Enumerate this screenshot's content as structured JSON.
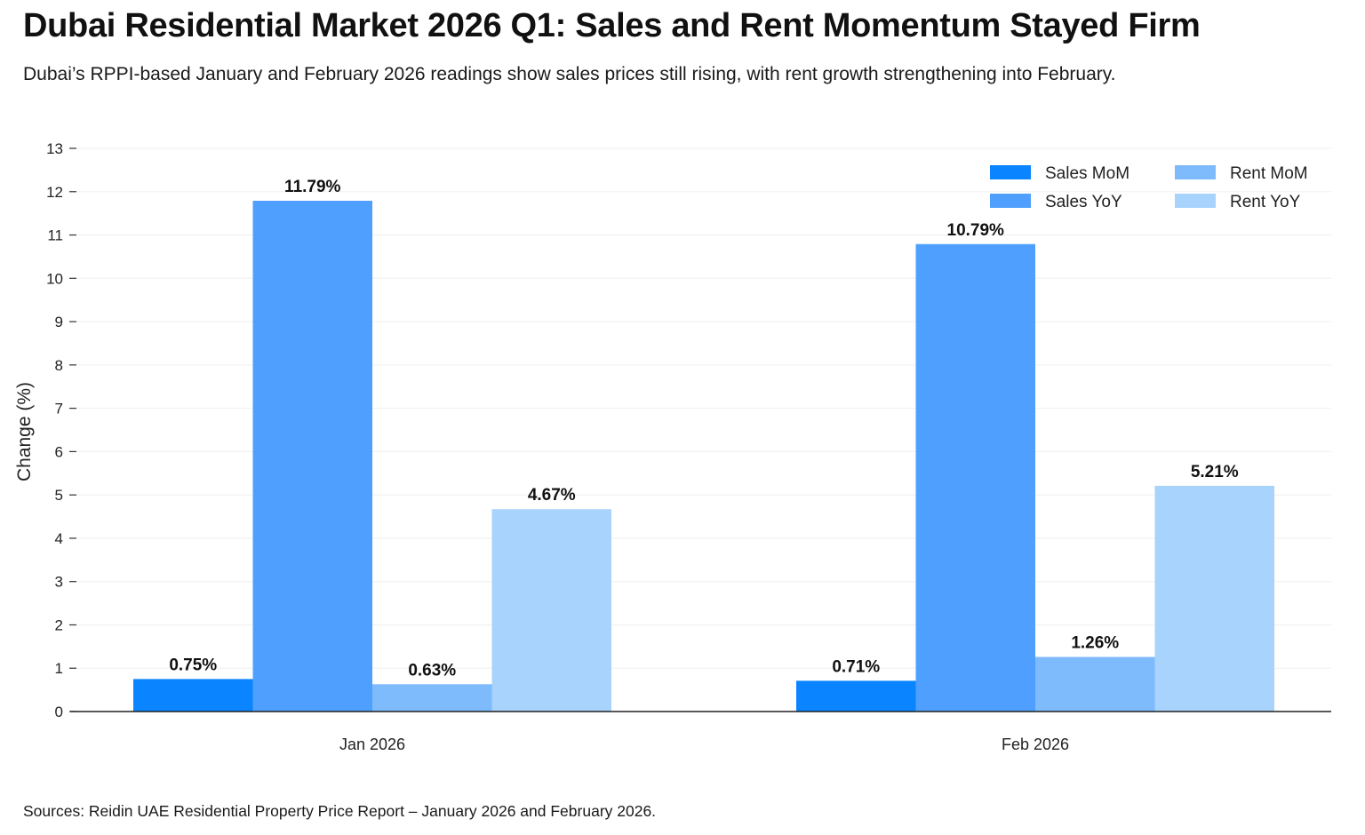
{
  "title": "Dubai Residential Market 2026 Q1: Sales and Rent Momentum Stayed Firm",
  "subtitle": "Dubai’s RPPI-based January and February 2026 readings show sales prices still rising, with rent growth strengthening into February.",
  "source": "Sources: Reidin UAE Residential Property Price Report – January 2026 and February 2026.",
  "chart_data": {
    "type": "bar",
    "categories": [
      "Jan 2026",
      "Feb 2026"
    ],
    "series": [
      {
        "name": "Sales MoM",
        "values": [
          0.75,
          0.71
        ],
        "labels": [
          "0.75%",
          "0.71%"
        ],
        "color": "#0a84ff"
      },
      {
        "name": "Sales YoY",
        "values": [
          11.79,
          10.79
        ],
        "labels": [
          "11.79%",
          "10.79%"
        ],
        "color": "#4fa0fe"
      },
      {
        "name": "Rent MoM",
        "values": [
          0.63,
          1.26
        ],
        "labels": [
          "0.63%",
          "1.26%"
        ],
        "color": "#7dbbfc"
      },
      {
        "name": "Rent YoY",
        "values": [
          4.67,
          5.21
        ],
        "labels": [
          "4.67%",
          "5.21%"
        ],
        "color": "#a8d3fd"
      }
    ],
    "title": "Dubai Residential Market 2026 Q1: Sales and Rent Momentum Stayed Firm",
    "xlabel": "",
    "ylabel": "Change (%)",
    "ylim": [
      0,
      13
    ],
    "yticks": [
      0,
      1,
      2,
      3,
      4,
      5,
      6,
      7,
      8,
      9,
      10,
      11,
      12,
      13
    ],
    "grid": "horizontal",
    "legend_position": "top-right",
    "legend_columns": 2
  }
}
